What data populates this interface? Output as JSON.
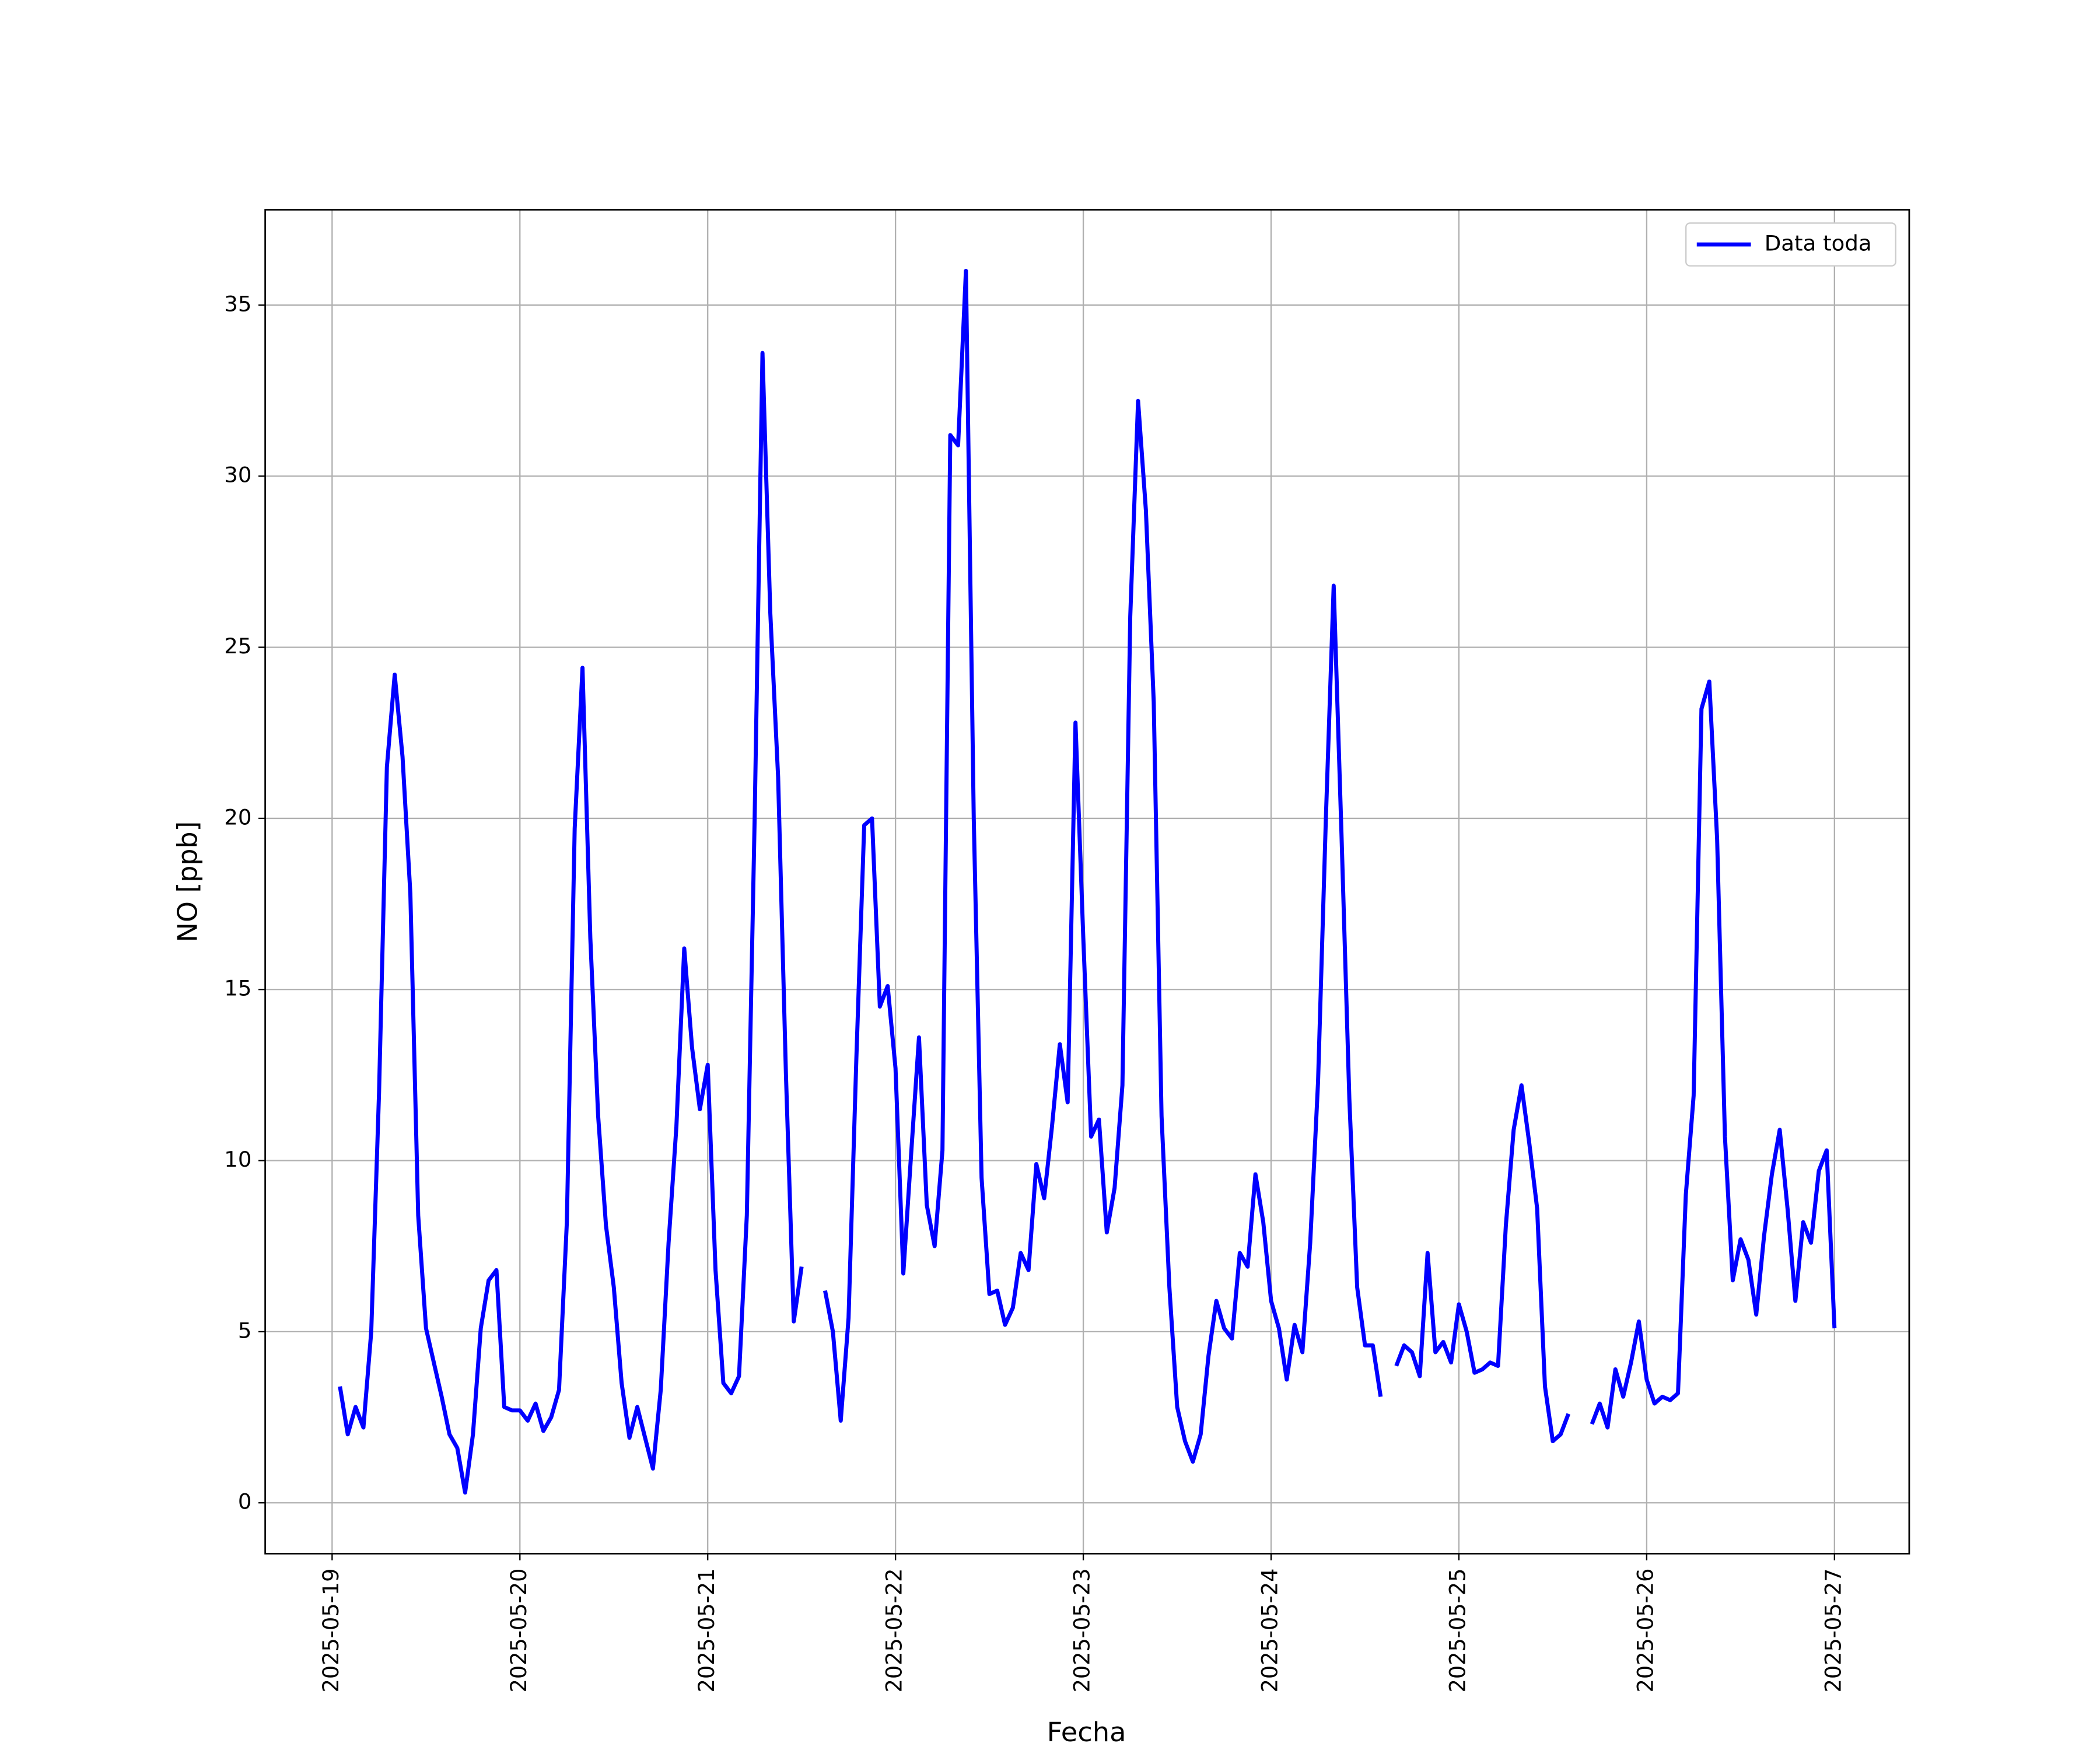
{
  "chart_data": {
    "type": "line",
    "xlabel": "Fecha",
    "ylabel": "NO [ppb]",
    "x": [
      "2025-05-19T01:00",
      "2025-05-19T02:00",
      "2025-05-19T03:00",
      "2025-05-19T04:00",
      "2025-05-19T05:00",
      "2025-05-19T06:00",
      "2025-05-19T07:00",
      "2025-05-19T08:00",
      "2025-05-19T09:00",
      "2025-05-19T10:00",
      "2025-05-19T11:00",
      "2025-05-19T12:00",
      "2025-05-19T13:00",
      "2025-05-19T14:00",
      "2025-05-19T15:00",
      "2025-05-19T16:00",
      "2025-05-19T17:00",
      "2025-05-19T18:00",
      "2025-05-19T19:00",
      "2025-05-19T20:00",
      "2025-05-19T21:00",
      "2025-05-19T22:00",
      "2025-05-19T23:00",
      "2025-05-20T00:00",
      "2025-05-20T01:00",
      "2025-05-20T02:00",
      "2025-05-20T03:00",
      "2025-05-20T04:00",
      "2025-05-20T05:00",
      "2025-05-20T06:00",
      "2025-05-20T07:00",
      "2025-05-20T08:00",
      "2025-05-20T09:00",
      "2025-05-20T10:00",
      "2025-05-20T11:00",
      "2025-05-20T12:00",
      "2025-05-20T13:00",
      "2025-05-20T14:00",
      "2025-05-20T15:00",
      "2025-05-20T16:00",
      "2025-05-20T17:00",
      "2025-05-20T18:00",
      "2025-05-20T19:00",
      "2025-05-20T20:00",
      "2025-05-20T21:00",
      "2025-05-20T22:00",
      "2025-05-20T23:00",
      "2025-05-21T00:00",
      "2025-05-21T01:00",
      "2025-05-21T02:00",
      "2025-05-21T03:00",
      "2025-05-21T04:00",
      "2025-05-21T05:00",
      "2025-05-21T06:00",
      "2025-05-21T07:00",
      "2025-05-21T08:00",
      "2025-05-21T09:00",
      "2025-05-21T10:00",
      "2025-05-21T11:00",
      "2025-05-21T12:00",
      "2025-05-21T13:00",
      "2025-05-21T14:00",
      "2025-05-21T15:00",
      "2025-05-21T16:00",
      "2025-05-21T17:00",
      "2025-05-21T18:00",
      "2025-05-21T19:00",
      "2025-05-21T20:00",
      "2025-05-21T21:00",
      "2025-05-21T22:00",
      "2025-05-21T23:00",
      "2025-05-22T00:00",
      "2025-05-22T01:00",
      "2025-05-22T02:00",
      "2025-05-22T03:00",
      "2025-05-22T04:00",
      "2025-05-22T05:00",
      "2025-05-22T06:00",
      "2025-05-22T07:00",
      "2025-05-22T08:00",
      "2025-05-22T09:00",
      "2025-05-22T10:00",
      "2025-05-22T11:00",
      "2025-05-22T12:00",
      "2025-05-22T13:00",
      "2025-05-22T14:00",
      "2025-05-22T15:00",
      "2025-05-22T16:00",
      "2025-05-22T17:00",
      "2025-05-22T18:00",
      "2025-05-22T19:00",
      "2025-05-22T20:00",
      "2025-05-22T21:00",
      "2025-05-22T22:00",
      "2025-05-22T23:00",
      "2025-05-23T00:00",
      "2025-05-23T01:00",
      "2025-05-23T02:00",
      "2025-05-23T03:00",
      "2025-05-23T04:00",
      "2025-05-23T05:00",
      "2025-05-23T06:00",
      "2025-05-23T07:00",
      "2025-05-23T08:00",
      "2025-05-23T09:00",
      "2025-05-23T10:00",
      "2025-05-23T11:00",
      "2025-05-23T12:00",
      "2025-05-23T13:00",
      "2025-05-23T14:00",
      "2025-05-23T15:00",
      "2025-05-23T16:00",
      "2025-05-23T17:00",
      "2025-05-23T18:00",
      "2025-05-23T19:00",
      "2025-05-23T20:00",
      "2025-05-23T21:00",
      "2025-05-23T22:00",
      "2025-05-23T23:00",
      "2025-05-24T00:00",
      "2025-05-24T01:00",
      "2025-05-24T02:00",
      "2025-05-24T03:00",
      "2025-05-24T04:00",
      "2025-05-24T05:00",
      "2025-05-24T06:00",
      "2025-05-24T07:00",
      "2025-05-24T08:00",
      "2025-05-24T09:00",
      "2025-05-24T10:00",
      "2025-05-24T11:00",
      "2025-05-24T12:00",
      "2025-05-24T13:00",
      "2025-05-24T14:00",
      "2025-05-24T15:00",
      "2025-05-24T16:00",
      "2025-05-24T17:00",
      "2025-05-24T18:00",
      "2025-05-24T19:00",
      "2025-05-24T20:00",
      "2025-05-24T21:00",
      "2025-05-24T22:00",
      "2025-05-24T23:00",
      "2025-05-25T00:00",
      "2025-05-25T01:00",
      "2025-05-25T02:00",
      "2025-05-25T03:00",
      "2025-05-25T04:00",
      "2025-05-25T05:00",
      "2025-05-25T06:00",
      "2025-05-25T07:00",
      "2025-05-25T08:00",
      "2025-05-25T09:00",
      "2025-05-25T10:00",
      "2025-05-25T11:00",
      "2025-05-25T12:00",
      "2025-05-25T13:00",
      "2025-05-25T14:00",
      "2025-05-25T15:00",
      "2025-05-25T16:00",
      "2025-05-25T17:00",
      "2025-05-25T18:00",
      "2025-05-25T19:00",
      "2025-05-25T20:00",
      "2025-05-25T21:00",
      "2025-05-25T22:00",
      "2025-05-25T23:00",
      "2025-05-26T00:00",
      "2025-05-26T01:00",
      "2025-05-26T02:00",
      "2025-05-26T03:00",
      "2025-05-26T04:00",
      "2025-05-26T05:00",
      "2025-05-26T06:00",
      "2025-05-26T07:00",
      "2025-05-26T08:00",
      "2025-05-26T09:00",
      "2025-05-26T10:00",
      "2025-05-26T11:00",
      "2025-05-26T12:00",
      "2025-05-26T13:00",
      "2025-05-26T14:00",
      "2025-05-26T15:00",
      "2025-05-26T16:00",
      "2025-05-26T17:00",
      "2025-05-26T18:00",
      "2025-05-26T19:00",
      "2025-05-26T20:00",
      "2025-05-26T21:00",
      "2025-05-26T22:00",
      "2025-05-26T23:00",
      "2025-05-27T00:00"
    ],
    "series": [
      {
        "name": "Data toda",
        "color": "#0000ff",
        "values": [
          3.4,
          2.0,
          2.8,
          2.2,
          5.0,
          12,
          21.5,
          24.2,
          21.8,
          17.8,
          8.4,
          5.1,
          4.1,
          3.1,
          2.0,
          1.6,
          0.3,
          2.0,
          5.1,
          6.5,
          6.8,
          2.8,
          2.7,
          2.7,
          2.4,
          2.9,
          2.1,
          2.5,
          3.3,
          8.2,
          19.7,
          24.4,
          16.5,
          11.3,
          8.1,
          6.3,
          3.5,
          1.9,
          2.8,
          1.9,
          1.0,
          3.3,
          7.6,
          11,
          16.2,
          13.3,
          11.5,
          12.8,
          6.8,
          3.5,
          3.2,
          3.7,
          8.4,
          20,
          33.6,
          26,
          21.2,
          12.5,
          5.3,
          6.9,
          null,
          null,
          6.2,
          5,
          2.4,
          5.4,
          13,
          19.8,
          20,
          14.5,
          15.1,
          12.7,
          6.7,
          10.2,
          13.6,
          8.7,
          7.5,
          10.3,
          31.2,
          30.9,
          36,
          20,
          9.5,
          6.1,
          6.2,
          5.2,
          5.7,
          7.3,
          6.8,
          9.9,
          8.9,
          11,
          13.4,
          11.7,
          22.8,
          16.5,
          10.7,
          11.2,
          7.9,
          9.2,
          12.2,
          25.9,
          32.2,
          29,
          23.4,
          11.3,
          6.3,
          2.8,
          1.8,
          1.2,
          2.0,
          4.3,
          5.9,
          5.1,
          4.8,
          7.3,
          6.9,
          9.6,
          8.2,
          5.9,
          5.1,
          3.6,
          5.2,
          4.4,
          7.6,
          12.3,
          20,
          26.8,
          19.5,
          11.8,
          6.3,
          4.6,
          4.6,
          3.1,
          null,
          4.0,
          4.6,
          4.4,
          3.7,
          7.3,
          4.4,
          4.7,
          4.1,
          5.8,
          5.0,
          3.8,
          3.9,
          4.1,
          4.0,
          8.1,
          10.9,
          12.2,
          10.5,
          8.6,
          3.4,
          1.8,
          2.0,
          2.6,
          null,
          null,
          2.3,
          2.9,
          2.2,
          3.9,
          3.1,
          4.1,
          5.3,
          3.6,
          2.9,
          3.1,
          3.0,
          3.2,
          9,
          11.9,
          23.2,
          24,
          19.4,
          10.7,
          6.5,
          7.7,
          7.1,
          5.5,
          7.8,
          9.6,
          10.9,
          8.6,
          5.9,
          8.2,
          7.6,
          9.7,
          10.3,
          5.1
        ]
      }
    ],
    "xlim": [
      "2025-05-18T15:27",
      "2025-05-27T09:33"
    ],
    "xticks": [
      "2025-05-19",
      "2025-05-20",
      "2025-05-21",
      "2025-05-22",
      "2025-05-23",
      "2025-05-24",
      "2025-05-25",
      "2025-05-26",
      "2025-05-27"
    ],
    "ylim": [
      -1.485,
      37.785
    ],
    "yticks": [
      0,
      5,
      10,
      15,
      20,
      25,
      30,
      35
    ],
    "grid": true,
    "legend": "upper right"
  }
}
